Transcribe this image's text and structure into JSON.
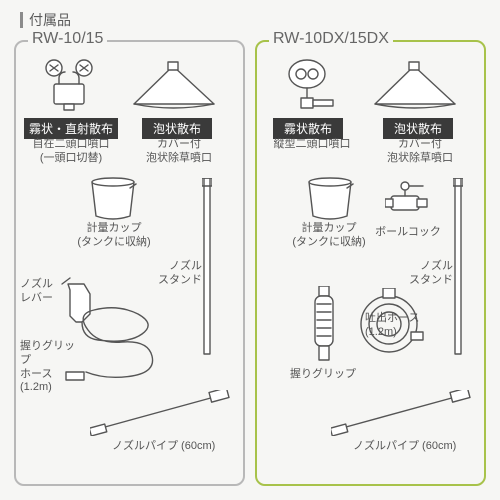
{
  "title": "付属品",
  "panels": {
    "left": {
      "title": "RW-10/15",
      "border_color": "#b8b8b8",
      "labels": {
        "mist": "霧状・直射散布",
        "foam": "泡状散布"
      },
      "captions": {
        "nozzle_free": "自在二頭口噴口\n(一頭口切替)",
        "foam_cover": "カバー付\n泡状除草噴口",
        "cup": "計量カップ\n(タンクに収納)",
        "lever": "ノズル\nレバー",
        "grip_hose": "握りグリップ\nホース\n(1.2m)",
        "stand": "ノズル\nスタンド",
        "pipe": "ノズルパイプ (60cm)"
      }
    },
    "right": {
      "title": "RW-10DX/15DX",
      "border_color": "#a7c24a",
      "labels": {
        "mist": "霧状散布",
        "foam": "泡状散布"
      },
      "captions": {
        "nozzle_vert": "縦型二頭口噴口",
        "foam_cover": "カバー付\n泡状除草噴口",
        "cup": "計量カップ\n(タンクに収納)",
        "ballcock": "ボールコック",
        "grip": "握りグリップ",
        "hose": "吐出ホース\n(1.2m)",
        "stand": "ノズル\nスタンド",
        "pipe": "ノズルパイプ (60cm)"
      }
    }
  }
}
